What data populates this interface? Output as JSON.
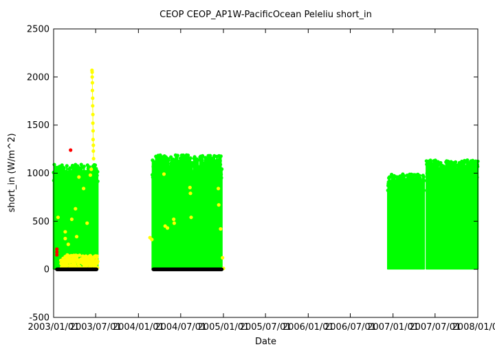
{
  "chart_data": {
    "type": "scatter",
    "title": "CEOP CEOP_AP1W-PacificOcean Peleliu  short_in",
    "xlabel": "Date",
    "ylabel": "short_in (W/m^2)",
    "xlim": [
      "2003-01-01",
      "2008-01-01"
    ],
    "ylim": [
      -500,
      2500
    ],
    "y_ticks": [
      -500,
      0,
      500,
      1000,
      1500,
      2000,
      2500
    ],
    "x_ticks": [
      {
        "date": "2003-01-01",
        "label": "2003/01/01"
      },
      {
        "date": "2003-07-01",
        "label": "2003/07/01"
      },
      {
        "date": "2004-01-01",
        "label": "2004/01/01"
      },
      {
        "date": "2004-07-01",
        "label": "2004/07/01"
      },
      {
        "date": "2005-01-01",
        "label": "2005/01/01"
      },
      {
        "date": "2005-07-01",
        "label": "2005/07/01"
      },
      {
        "date": "2006-01-01",
        "label": "2006/01/01"
      },
      {
        "date": "2006-07-01",
        "label": "2006/07/01"
      },
      {
        "date": "2007-01-01",
        "label": "2007/01/01"
      },
      {
        "date": "2007-07-01",
        "label": "2007/07/01"
      },
      {
        "date": "2008-01-01",
        "label": "2008/01/01"
      }
    ],
    "grid": false,
    "legend": "none",
    "colors": {
      "green": "#00ff00",
      "yellow": "#ffff00",
      "red": "#ff0000",
      "black": "#000000"
    },
    "series": [
      {
        "color": "green",
        "segments": [
          {
            "start": "2003-01-01",
            "end": "2003-07-10",
            "max_range": [
              850,
              1090
            ]
          },
          {
            "start": "2004-03-01",
            "end": "2004-12-25",
            "max_range": [
              950,
              1190
            ]
          },
          {
            "start": "2006-12-10",
            "end": "2007-05-15",
            "max_range": [
              800,
              990
            ]
          },
          {
            "start": "2007-05-25",
            "end": "2008-01-01",
            "max_range": [
              930,
              1140
            ]
          }
        ]
      },
      {
        "color": "yellow",
        "points": [
          {
            "x": "2003-06-15",
            "y": 2070
          },
          {
            "x": "2003-06-16",
            "y": 2050
          },
          {
            "x": "2003-06-16",
            "y": 2000
          },
          {
            "x": "2003-06-17",
            "y": 1940
          },
          {
            "x": "2003-06-17",
            "y": 1860
          },
          {
            "x": "2003-06-18",
            "y": 1780
          },
          {
            "x": "2003-06-18",
            "y": 1700
          },
          {
            "x": "2003-06-19",
            "y": 1610
          },
          {
            "x": "2003-06-19",
            "y": 1520
          },
          {
            "x": "2003-06-20",
            "y": 1440
          },
          {
            "x": "2003-06-20",
            "y": 1350
          },
          {
            "x": "2003-06-21",
            "y": 1290
          },
          {
            "x": "2003-06-21",
            "y": 1230
          },
          {
            "x": "2003-06-22",
            "y": 1150
          },
          {
            "x": "2003-06-12",
            "y": 1040
          },
          {
            "x": "2003-06-08",
            "y": 980
          },
          {
            "x": "2003-04-20",
            "y": 960
          },
          {
            "x": "2003-05-10",
            "y": 840
          },
          {
            "x": "2003-04-05",
            "y": 630
          },
          {
            "x": "2003-03-20",
            "y": 520
          },
          {
            "x": "2003-05-25",
            "y": 480
          },
          {
            "x": "2003-02-20",
            "y": 390
          },
          {
            "x": "2003-02-20",
            "y": 320
          },
          {
            "x": "2003-04-10",
            "y": 340
          },
          {
            "x": "2003-03-05",
            "y": 260
          },
          {
            "x": "2003-01-20",
            "y": 540
          },
          {
            "x": "2004-02-20",
            "y": 330
          },
          {
            "x": "2004-02-28",
            "y": 310
          },
          {
            "x": "2004-04-20",
            "y": 990
          },
          {
            "x": "2004-06-01",
            "y": 520
          },
          {
            "x": "2004-06-03",
            "y": 480
          },
          {
            "x": "2004-04-25",
            "y": 450
          },
          {
            "x": "2004-05-05",
            "y": 430
          },
          {
            "x": "2004-08-10",
            "y": 850
          },
          {
            "x": "2004-08-12",
            "y": 790
          },
          {
            "x": "2004-08-15",
            "y": 540
          },
          {
            "x": "2004-12-10",
            "y": 840
          },
          {
            "x": "2004-12-12",
            "y": 670
          },
          {
            "x": "2004-12-20",
            "y": 420
          },
          {
            "x": "2004-12-28",
            "y": 120
          },
          {
            "x": "2005-01-01",
            "y": 10
          }
        ],
        "band": {
          "start": "2003-02-01",
          "end": "2003-07-10",
          "y_range": [
            0,
            150
          ]
        }
      },
      {
        "color": "red",
        "points": [
          {
            "x": "2003-03-15",
            "y": 1240
          },
          {
            "x": "2003-01-15",
            "y": 210
          },
          {
            "x": "2003-01-15",
            "y": 180
          },
          {
            "x": "2003-01-15",
            "y": 150
          }
        ]
      },
      {
        "color": "black",
        "segments": [
          {
            "start": "2003-01-15",
            "end": "2003-07-05",
            "y": 0
          },
          {
            "start": "2004-03-05",
            "end": "2004-12-25",
            "y": 0
          }
        ]
      }
    ]
  }
}
